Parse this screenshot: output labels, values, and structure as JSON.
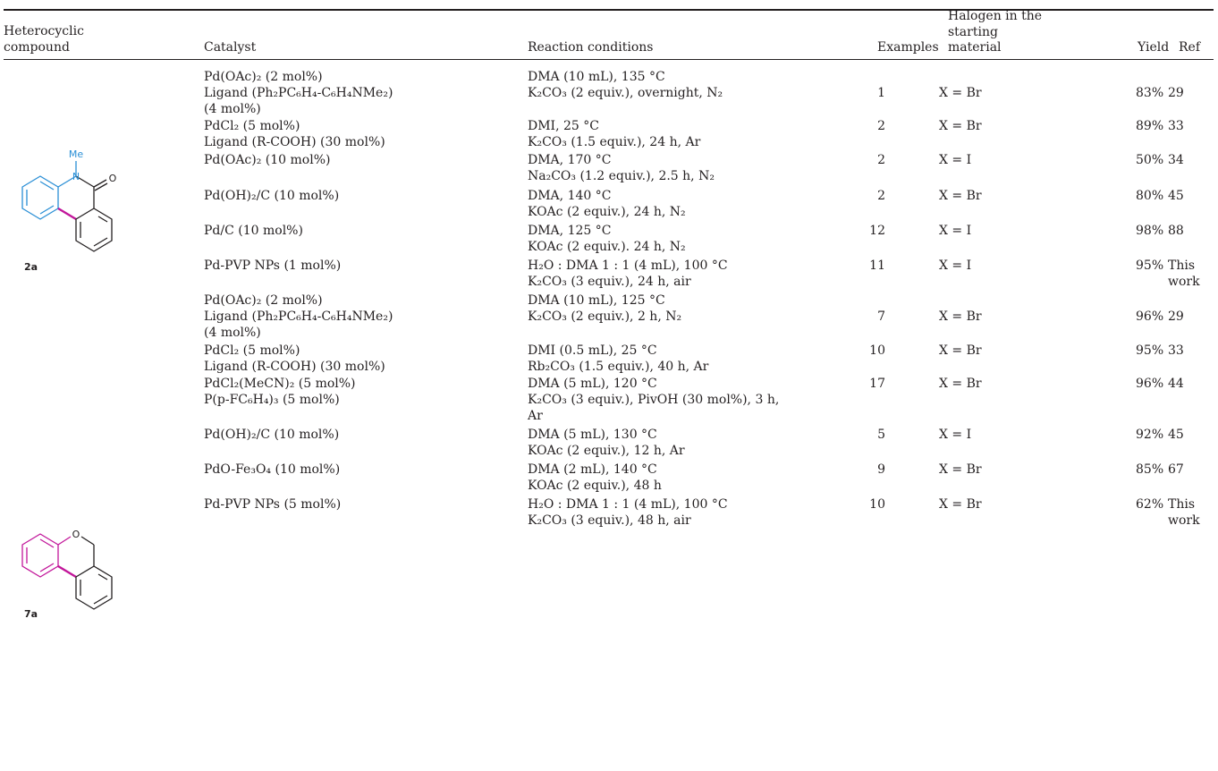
{
  "colors": {
    "blue_ring": "#2a8fd6",
    "magenta_ring": "#c2169a",
    "text": "#231f20"
  },
  "header": {
    "compound": [
      "Heterocyclic",
      "compound"
    ],
    "catalyst": "Catalyst",
    "conditions": "Reaction conditions",
    "examples": "Examples",
    "halogen": [
      "Halogen in the",
      "starting",
      "material"
    ],
    "yield": "Yield",
    "ref": "Ref"
  },
  "compounds": {
    "c2a": {
      "label": "2a",
      "substituent": "Me",
      "n_atom": "N",
      "o_atom": "O"
    },
    "c7a": {
      "label": "7a",
      "o_atom": "O"
    }
  },
  "rows": [
    {
      "catalyst": [
        "Pd(OAc)₂ (2 mol%)",
        "Ligand (Ph₂PC₆H₄-C₆H₄NMe₂)",
        "(4 mol%)"
      ],
      "conditions": [
        "DMA (10 mL), 135 °C",
        "K₂CO₃ (2 equiv.), overnight, N₂"
      ],
      "examples": "1",
      "halogen": "X = Br",
      "yield": "83%",
      "ref": [
        "29"
      ]
    },
    {
      "catalyst": [
        "PdCl₂ (5 mol%)",
        "Ligand (R-COOH) (30 mol%)"
      ],
      "conditions": [
        "DMI, 25 °C",
        "K₂CO₃ (1.5 equiv.), 24 h, Ar"
      ],
      "examples": "2",
      "halogen": "X = Br",
      "yield": "89%",
      "ref": [
        "33"
      ]
    },
    {
      "catalyst": [
        "Pd(OAc)₂ (10 mol%)"
      ],
      "conditions": [
        "DMA, 170 °C",
        "Na₂CO₃ (1.2 equiv.), 2.5 h, N₂"
      ],
      "examples": "2",
      "halogen": "X = I",
      "yield": "50%",
      "ref": [
        "34"
      ]
    },
    {
      "catalyst": [
        "Pd(OH)₂/C (10 mol%)"
      ],
      "conditions": [
        "DMA, 140 °C",
        "KOAc (2 equiv.), 24 h, N₂"
      ],
      "examples": "2",
      "halogen": "X = Br",
      "yield": "80%",
      "ref": [
        "45"
      ]
    },
    {
      "catalyst": [
        "Pd/C (10 mol%)"
      ],
      "conditions": [
        "DMA, 125 °C",
        "KOAc (2 equiv.). 24 h, N₂"
      ],
      "examples": "12",
      "halogen": "X = I",
      "yield": "98%",
      "ref": [
        "88"
      ]
    },
    {
      "catalyst": [
        "Pd-PVP NPs (1 mol%)"
      ],
      "conditions": [
        "H₂O : DMA 1 : 1 (4 mL), 100 °C",
        "K₂CO₃ (3 equiv.), 24 h, air"
      ],
      "examples": "11",
      "halogen": "X = I",
      "yield": "95%",
      "ref": [
        "This",
        "work"
      ]
    },
    {
      "catalyst": [
        "Pd(OAc)₂ (2 mol%)",
        "Ligand (Ph₂PC₆H₄-C₆H₄NMe₂)",
        "(4 mol%)"
      ],
      "conditions": [
        "DMA (10 mL), 125 °C",
        "K₂CO₃ (2 equiv.), 2 h, N₂"
      ],
      "examples": "7",
      "halogen": "X = Br",
      "yield": "96%",
      "ref": [
        "29"
      ]
    },
    {
      "catalyst": [
        "PdCl₂ (5 mol%)",
        "Ligand (R-COOH) (30 mol%)"
      ],
      "conditions": [
        "DMI (0.5 mL), 25 °C",
        "Rb₂CO₃ (1.5 equiv.), 40 h, Ar"
      ],
      "examples": "10",
      "halogen": "X = Br",
      "yield": "95%",
      "ref": [
        "33"
      ]
    },
    {
      "catalyst": [
        "PdCl₂(MeCN)₂ (5 mol%)",
        "P(p-FC₆H₄)₃ (5 mol%)"
      ],
      "conditions": [
        "DMA (5 mL), 120 °C",
        "K₂CO₃ (3 equiv.), PivOH (30 mol%), 3 h,",
        "Ar"
      ],
      "examples": "17",
      "halogen": "X = Br",
      "yield": "96%",
      "ref": [
        "44"
      ]
    },
    {
      "catalyst": [
        "Pd(OH)₂/C (10 mol%)"
      ],
      "conditions": [
        "DMA (5 mL), 130 °C",
        "KOAc (2 equiv.), 12 h, Ar"
      ],
      "examples": "5",
      "halogen": "X = I",
      "yield": "92%",
      "ref": [
        "45"
      ]
    },
    {
      "catalyst": [
        "PdO-Fe₃O₄ (10 mol%)"
      ],
      "conditions": [
        "DMA (2 mL), 140 °C",
        "KOAc (2 equiv.), 48 h"
      ],
      "examples": "9",
      "halogen": "X = Br",
      "yield": "85%",
      "ref": [
        "67"
      ]
    },
    {
      "catalyst": [
        "Pd-PVP NPs (5 mol%)"
      ],
      "conditions": [
        "H₂O : DMA 1 : 1 (4 mL), 100 °C",
        "K₂CO₃ (3 equiv.), 48 h, air"
      ],
      "examples": "10",
      "halogen": "X = Br",
      "yield": "62%",
      "ref": [
        "This",
        "work"
      ]
    }
  ]
}
